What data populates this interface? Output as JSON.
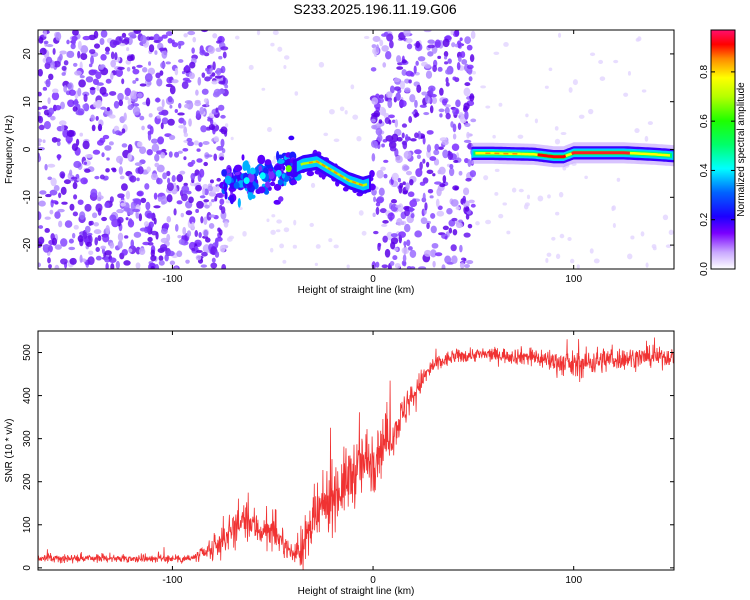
{
  "title": "S233.2025.196.11.19.G06",
  "charts": [
    {
      "type": "heatmap",
      "xlabel": "Height of straight line (km)",
      "ylabel": "Frequency (Hz)",
      "xlim": [
        -167,
        150
      ],
      "ylim": [
        -25,
        25
      ],
      "xticks": [
        -100,
        0,
        100
      ],
      "yticks": [
        -20,
        -10,
        0,
        10,
        20
      ],
      "colorbar": {
        "label": "Normalized spectral amplitude",
        "range": [
          0,
          0.97
        ],
        "ticks": [
          0.0,
          0.2,
          0.4,
          0.6,
          0.8
        ]
      },
      "noise_segments": [
        [
          -167,
          -73
        ],
        [
          0,
          50
        ]
      ],
      "faint_segments": [
        [
          -73,
          0
        ],
        [
          50,
          150
        ]
      ],
      "signal_track": {
        "x": [
          -75,
          -60,
          -45,
          -35,
          -28,
          -20,
          -12,
          -5,
          -1,
          50,
          60,
          80,
          90,
          95,
          100,
          110,
          125,
          140,
          150
        ],
        "y": [
          -7,
          -6.5,
          -5,
          -3,
          -2.5,
          -4.5,
          -6.5,
          -7.5,
          -7,
          -0.8,
          -0.8,
          -1,
          -1.5,
          -1.5,
          -0.7,
          -0.7,
          -0.7,
          -1,
          -1.3
        ]
      }
    },
    {
      "type": "line",
      "xlabel": "Height of straight line (km)",
      "ylabel": "SNR (10 * v/v)",
      "xlim": [
        -167,
        150
      ],
      "ylim": [
        -5,
        550
      ],
      "xticks": [
        -100,
        0,
        100
      ],
      "yticks": [
        0,
        100,
        200,
        300,
        400,
        500
      ],
      "color": "#f03232",
      "x": [
        -167,
        -120,
        -90,
        -80,
        -70,
        -65,
        -60,
        -55,
        -50,
        -45,
        -40,
        -35,
        -30,
        -25,
        -20,
        -15,
        -10,
        -5,
        0,
        5,
        10,
        15,
        20,
        25,
        30,
        40,
        50,
        60,
        80,
        100,
        110,
        120,
        140,
        150
      ],
      "y": [
        22,
        22,
        22,
        40,
        90,
        110,
        100,
        85,
        80,
        60,
        30,
        50,
        100,
        140,
        170,
        190,
        220,
        240,
        260,
        290,
        310,
        360,
        400,
        440,
        470,
        490,
        495,
        495,
        490,
        470,
        480,
        485,
        490,
        490
      ],
      "noise": [
        8,
        8,
        10,
        25,
        40,
        40,
        40,
        35,
        30,
        25,
        15,
        50,
        60,
        60,
        70,
        70,
        70,
        70,
        80,
        60,
        40,
        40,
        30,
        25,
        20,
        15,
        15,
        15,
        20,
        30,
        30,
        25,
        20,
        20
      ]
    }
  ]
}
